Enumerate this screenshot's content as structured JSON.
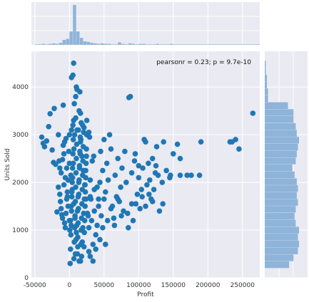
{
  "chart_data": {
    "type": "scatter",
    "title": "",
    "xlabel": "Profit",
    "ylabel": "Units Sold",
    "xlim": [
      -55000,
      275000
    ],
    "ylim": [
      0,
      4750
    ],
    "xticks": [
      -50000,
      0,
      50000,
      100000,
      150000,
      200000,
      250000
    ],
    "yticks": [
      0,
      1000,
      2000,
      3000,
      4000
    ],
    "annotation": "pearsonr = 0.23; p = 9.7e-10",
    "grid": true,
    "marginals": "histograms on top (x) and right (y)",
    "colors": {
      "background": "#eaeaf2",
      "grid": "#ffffff",
      "points": "#1f77b4",
      "histogram": "#8fb4d9"
    },
    "x_hist": {
      "bin_edges_start": -50000,
      "bin_width": 5000,
      "counts": [
        1,
        1,
        2,
        1,
        2,
        3,
        2,
        4,
        10,
        12,
        27,
        80,
        27,
        14,
        7,
        6,
        4,
        3,
        2,
        3,
        2,
        2,
        1,
        1,
        5,
        2,
        1,
        3,
        2,
        1,
        2,
        2,
        1,
        1,
        1,
        2,
        1,
        1,
        1,
        2,
        1,
        1,
        1,
        1,
        1,
        1,
        1,
        1,
        1,
        1,
        1,
        1,
        1,
        1,
        1,
        1,
        1,
        1,
        1,
        1,
        1,
        1,
        1,
        1,
        1,
        1
      ]
    },
    "y_hist": {
      "bin_edges_start": 200,
      "bin_width": 145,
      "counts": [
        22,
        26,
        30,
        31,
        30,
        31,
        28,
        27,
        28,
        30,
        29,
        30,
        29,
        27,
        25,
        28,
        29,
        30,
        31,
        29,
        28,
        26,
        26,
        21,
        3,
        3,
        2,
        2,
        1,
        1
      ]
    },
    "points": [
      [
        -40000,
        2950
      ],
      [
        -38000,
        2820
      ],
      [
        -36000,
        2750
      ],
      [
        -33000,
        2870
      ],
      [
        -30000,
        3170
      ],
      [
        -28000,
        3440
      ],
      [
        -25000,
        2680
      ],
      [
        -23000,
        2420
      ],
      [
        -22000,
        3550
      ],
      [
        -20000,
        2380
      ],
      [
        -18000,
        1380
      ],
      [
        -16000,
        3000
      ],
      [
        -15000,
        2450
      ],
      [
        -14000,
        2300
      ],
      [
        -12000,
        2200
      ],
      [
        -10000,
        2480
      ],
      [
        -9000,
        3620
      ],
      [
        -8000,
        2600
      ],
      [
        -7000,
        2850
      ],
      [
        -6000,
        2100
      ],
      [
        -5000,
        2920
      ],
      [
        -4000,
        1650
      ],
      [
        -3000,
        1800
      ],
      [
        -2000,
        1500
      ],
      [
        -1000,
        2650
      ],
      [
        0,
        1200
      ],
      [
        0,
        2400
      ],
      [
        0,
        3000
      ],
      [
        -16000,
        1900
      ],
      [
        -14000,
        1750
      ],
      [
        -13000,
        1600
      ],
      [
        -12000,
        1450
      ],
      [
        -11000,
        1320
      ],
      [
        -10000,
        1250
      ],
      [
        -9000,
        2780
      ],
      [
        -8000,
        1950
      ],
      [
        -7000,
        1150
      ],
      [
        -6000,
        1050
      ],
      [
        -5000,
        1350
      ],
      [
        -4000,
        2300
      ],
      [
        -3000,
        1700
      ],
      [
        -2000,
        2050
      ],
      [
        1000,
        300
      ],
      [
        1500,
        600
      ],
      [
        2000,
        900
      ],
      [
        2500,
        1100
      ],
      [
        3000,
        1400
      ],
      [
        3500,
        1700
      ],
      [
        4000,
        2000
      ],
      [
        4500,
        2300
      ],
      [
        5000,
        2600
      ],
      [
        5500,
        2900
      ],
      [
        6000,
        3300
      ],
      [
        6500,
        400
      ],
      [
        7000,
        750
      ],
      [
        7500,
        1050
      ],
      [
        8000,
        1300
      ],
      [
        8500,
        1600
      ],
      [
        9000,
        1900
      ],
      [
        9500,
        2200
      ],
      [
        10000,
        2500
      ],
      [
        10500,
        2800
      ],
      [
        11000,
        3100
      ],
      [
        11500,
        500
      ],
      [
        12000,
        850
      ],
      [
        12500,
        1150
      ],
      [
        13000,
        1450
      ],
      [
        13500,
        1750
      ],
      [
        14000,
        2050
      ],
      [
        14500,
        2350
      ],
      [
        15000,
        2650
      ],
      [
        15500,
        2950
      ],
      [
        16000,
        350
      ],
      [
        16500,
        700
      ],
      [
        17000,
        1000
      ],
      [
        17500,
        1250
      ],
      [
        18000,
        1550
      ],
      [
        18500,
        1850
      ],
      [
        19000,
        2150
      ],
      [
        19500,
        2450
      ],
      [
        20000,
        2750
      ],
      [
        20500,
        3050
      ],
      [
        21000,
        650
      ],
      [
        21500,
        950
      ],
      [
        22000,
        1200
      ],
      [
        22500,
        1500
      ],
      [
        23000,
        1800
      ],
      [
        23500,
        2100
      ],
      [
        24000,
        2400
      ],
      [
        24500,
        2700
      ],
      [
        25000,
        3000
      ],
      [
        500,
        1000
      ],
      [
        1500,
        1200
      ],
      [
        2500,
        1500
      ],
      [
        3500,
        1800
      ],
      [
        4500,
        2100
      ],
      [
        5500,
        2400
      ],
      [
        6500,
        2700
      ],
      [
        7500,
        3000
      ],
      [
        8500,
        500
      ],
      [
        9500,
        800
      ],
      [
        10500,
        1100
      ],
      [
        11500,
        1400
      ],
      [
        12500,
        1700
      ],
      [
        13500,
        2000
      ],
      [
        14500,
        2300
      ],
      [
        15500,
        2600
      ],
      [
        16500,
        2900
      ],
      [
        17500,
        450
      ],
      [
        18500,
        750
      ],
      [
        19500,
        1050
      ],
      [
        20500,
        1350
      ],
      [
        21500,
        1650
      ],
      [
        22500,
        1950
      ],
      [
        23500,
        2250
      ],
      [
        24500,
        2550
      ],
      [
        2000,
        2150
      ],
      [
        4000,
        1850
      ],
      [
        6000,
        1550
      ],
      [
        8000,
        1250
      ],
      [
        10000,
        950
      ],
      [
        12000,
        650
      ],
      [
        14000,
        350
      ],
      [
        16000,
        2850
      ],
      [
        18000,
        2550
      ],
      [
        20000,
        2250
      ],
      [
        22000,
        1950
      ],
      [
        24000,
        1650
      ],
      [
        26000,
        1350
      ],
      [
        28000,
        1050
      ],
      [
        3000,
        3100
      ],
      [
        5000,
        3200
      ],
      [
        9000,
        3350
      ],
      [
        13000,
        3100
      ],
      [
        17000,
        3250
      ],
      [
        21000,
        3150
      ],
      [
        25000,
        3300
      ],
      [
        3000,
        4200
      ],
      [
        5000,
        4250
      ],
      [
        7000,
        3650
      ],
      [
        9000,
        3800
      ],
      [
        11000,
        3950
      ],
      [
        14000,
        3500
      ],
      [
        6000,
        4500
      ],
      [
        16000,
        3450
      ],
      [
        19000,
        3200
      ],
      [
        15000,
        3900
      ],
      [
        10000,
        4000
      ],
      [
        27000,
        1300
      ],
      [
        28000,
        3050
      ],
      [
        29000,
        2950
      ],
      [
        30000,
        2050
      ],
      [
        31000,
        1650
      ],
      [
        32000,
        1200
      ],
      [
        33000,
        2450
      ],
      [
        34000,
        700
      ],
      [
        36000,
        1850
      ],
      [
        38000,
        900
      ],
      [
        40000,
        1100
      ],
      [
        42000,
        1500
      ],
      [
        44000,
        2000
      ],
      [
        46000,
        1300
      ],
      [
        48000,
        2250
      ],
      [
        50000,
        1650
      ],
      [
        52000,
        1800
      ],
      [
        54000,
        2400
      ],
      [
        56000,
        2050
      ],
      [
        58000,
        3000
      ],
      [
        60000,
        2700
      ],
      [
        62000,
        1500
      ],
      [
        64000,
        1250
      ],
      [
        66000,
        2150
      ],
      [
        68000,
        1700
      ],
      [
        70000,
        2500
      ],
      [
        72000,
        1600
      ],
      [
        74000,
        1900
      ],
      [
        76000,
        2300
      ],
      [
        78000,
        1400
      ],
      [
        80000,
        2650
      ],
      [
        82000,
        2000
      ],
      [
        84000,
        1350
      ],
      [
        86000,
        3780
      ],
      [
        88000,
        3800
      ],
      [
        90000,
        2200
      ],
      [
        92000,
        1200
      ],
      [
        94000,
        2450
      ],
      [
        96000,
        1550
      ],
      [
        98000,
        1750
      ],
      [
        100000,
        2100
      ],
      [
        102000,
        1450
      ],
      [
        104000,
        1850
      ],
      [
        106000,
        2300
      ],
      [
        108000,
        2900
      ],
      [
        110000,
        2850
      ],
      [
        112000,
        1950
      ],
      [
        114000,
        2400
      ],
      [
        116000,
        2050
      ],
      [
        118000,
        1650
      ],
      [
        120000,
        2500
      ],
      [
        122000,
        1850
      ],
      [
        124000,
        2200
      ],
      [
        126000,
        2750
      ],
      [
        128000,
        2150
      ],
      [
        130000,
        1400
      ],
      [
        134000,
        2000
      ],
      [
        136000,
        2850
      ],
      [
        140000,
        2250
      ],
      [
        146000,
        2150
      ],
      [
        150000,
        2600
      ],
      [
        156000,
        2800
      ],
      [
        160000,
        2150
      ],
      [
        170000,
        2150
      ],
      [
        176000,
        2150
      ],
      [
        188000,
        2150
      ],
      [
        190000,
        2850
      ],
      [
        232000,
        2850
      ],
      [
        235000,
        2850
      ],
      [
        240000,
        2900
      ],
      [
        245000,
        2700
      ],
      [
        265000,
        3450
      ],
      [
        55000,
        1200
      ],
      [
        60000,
        1450
      ],
      [
        65000,
        1100
      ],
      [
        70000,
        1650
      ],
      [
        75000,
        1300
      ],
      [
        85000,
        1050
      ],
      [
        90000,
        1550
      ],
      [
        95000,
        2600
      ],
      [
        100000,
        2350
      ],
      [
        105000,
        1700
      ],
      [
        110000,
        1500
      ],
      [
        120000,
        1600
      ],
      [
        125000,
        2350
      ],
      [
        135000,
        1550
      ],
      [
        145000,
        2100
      ],
      [
        160000,
        2500
      ],
      [
        115000,
        1750
      ],
      [
        35000,
        2550
      ],
      [
        45000,
        2650
      ],
      [
        50000,
        2900
      ],
      [
        40000,
        1900
      ],
      [
        30000,
        1700
      ],
      [
        36000,
        1400
      ],
      [
        42000,
        1650
      ],
      [
        48000,
        1050
      ],
      [
        52000,
        700
      ],
      [
        38000,
        600
      ],
      [
        44000,
        800
      ],
      [
        30000,
        450
      ],
      [
        34000,
        350
      ],
      [
        28000,
        550
      ]
    ]
  }
}
